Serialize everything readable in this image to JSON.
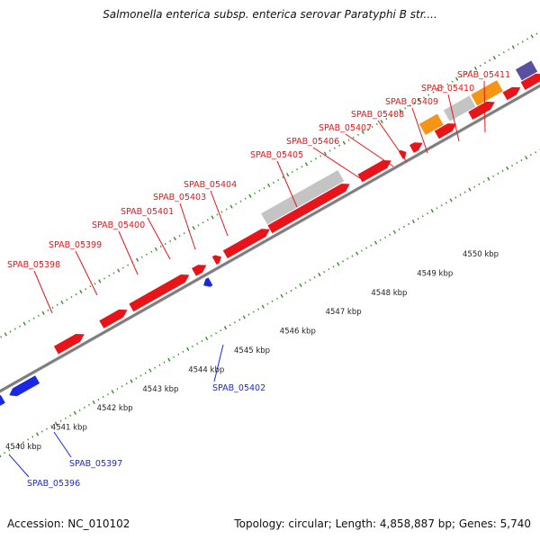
{
  "title": "Salmonella enterica subsp. enterica serovar Paratyphi B str....",
  "footer": {
    "accession": "Accession: NC_010102",
    "summary": "Topology: circular; Length: 4,858,887 bp; Genes: 5,740"
  },
  "colors": {
    "forward_gene": "#e8141a",
    "reverse_gene": "#1a28e6",
    "grey_feature": "#c4c4c4",
    "orange_feature": "#f59518",
    "purple_feature": "#5a4ea0",
    "backbone": "#7d7d7d",
    "ticks": "#2d8f1e"
  },
  "kbp_labels": [
    "4540 kbp",
    "4541 kbp",
    "4542 kbp",
    "4543 kbp",
    "4544 kbp",
    "4545 kbp",
    "4546 kbp",
    "4547 kbp",
    "4548 kbp",
    "4549 kbp",
    "4550 kbp"
  ],
  "forward_genes": [
    "SPAB_05398",
    "SPAB_05399",
    "SPAB_05400",
    "SPAB_05401",
    "SPAB_05403",
    "SPAB_05404",
    "SPAB_05405",
    "SPAB_05406",
    "SPAB_05407",
    "SPAB_05408",
    "SPAB_05409",
    "SPAB_05410",
    "SPAB_05411"
  ],
  "reverse_genes": [
    "SPAB_05396",
    "SPAB_05397",
    "SPAB_05402"
  ]
}
